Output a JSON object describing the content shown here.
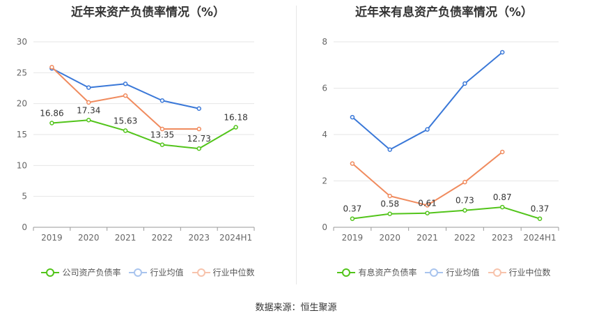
{
  "source": "数据来源：恒生聚源",
  "chart_data": [
    {
      "type": "line",
      "title": "近年来资产负债率情况（%）",
      "categories": [
        "2019",
        "2020",
        "2021",
        "2022",
        "2023",
        "2024H1"
      ],
      "ylim": [
        0,
        30
      ],
      "yticks": [
        0,
        5,
        10,
        15,
        20,
        25,
        30
      ],
      "grid": true,
      "legend_position": "bottom",
      "series": [
        {
          "name": "公司资产负债率",
          "color": "#52c41a",
          "values": [
            16.86,
            17.34,
            15.63,
            13.35,
            12.73,
            16.18
          ],
          "labels": [
            "16.86",
            "17.34",
            "15.63",
            "13.35",
            "12.73",
            "16.18"
          ]
        },
        {
          "name": "行业均值",
          "color": "#3a78d8",
          "values": [
            25.7,
            22.6,
            23.2,
            20.5,
            19.2,
            null
          ]
        },
        {
          "name": "行业中位数",
          "color": "#f08b5e",
          "values": [
            25.9,
            20.2,
            21.3,
            15.9,
            15.9,
            null
          ]
        }
      ]
    },
    {
      "type": "line",
      "title": "近年来有息资产负债率情况（%）",
      "categories": [
        "2019",
        "2020",
        "2021",
        "2022",
        "2023",
        "2024H1"
      ],
      "ylim": [
        0,
        8
      ],
      "yticks": [
        0,
        2,
        4,
        6,
        8
      ],
      "grid": true,
      "legend_position": "bottom",
      "series": [
        {
          "name": "有息资产负债率",
          "color": "#52c41a",
          "values": [
            0.37,
            0.58,
            0.61,
            0.73,
            0.87,
            0.37
          ],
          "labels": [
            "0.37",
            "0.58",
            "0.61",
            "0.73",
            "0.87",
            "0.37"
          ]
        },
        {
          "name": "行业均值",
          "color": "#3a78d8",
          "values": [
            4.75,
            3.35,
            4.22,
            6.2,
            7.55,
            null
          ]
        },
        {
          "name": "行业中位数",
          "color": "#f08b5e",
          "values": [
            2.75,
            1.35,
            0.95,
            1.95,
            3.25,
            null
          ]
        }
      ]
    }
  ]
}
